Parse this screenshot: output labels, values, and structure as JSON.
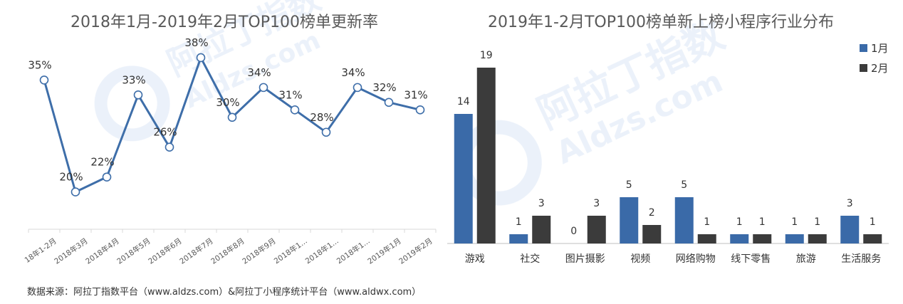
{
  "watermark": {
    "text_cn": "阿拉丁指数",
    "text_en": "Aldzs.com",
    "color": "#dbe6f6"
  },
  "source_note": "数据来源：阿拉丁指数平台（www.aldzs.com）&阿拉丁小程序统计平台（www.aldwx.com）",
  "chart_data": [
    {
      "type": "line",
      "title": "2018年1月-2019年2月TOP100榜单更新率",
      "categories": [
        "18年1-2月",
        "2018年3月",
        "2018年4月",
        "2018年5月",
        "2018年6月",
        "2018年7月",
        "2018年8月",
        "2018年9月",
        "2018年1...",
        "2018年1...",
        "2018年1...",
        "2019年1月",
        "2019年2月"
      ],
      "values": [
        35,
        20,
        22,
        33,
        26,
        38,
        30,
        34,
        31,
        28,
        34,
        32,
        31
      ],
      "labels": [
        "35%",
        "20%",
        "22%",
        "33%",
        "26%",
        "38%",
        "30%",
        "34%",
        "31%",
        "28%",
        "34%",
        "32%",
        "31%"
      ],
      "ylim": [
        15,
        40
      ],
      "color": "#3e6ea9",
      "grid": false
    },
    {
      "type": "bar",
      "title": "2019年1-2月TOP100榜单新上榜小程序行业分布",
      "categories": [
        "游戏",
        "社交",
        "图片摄影",
        "视频",
        "网络购物",
        "线下零售",
        "旅游",
        "生活服务"
      ],
      "series": [
        {
          "name": "1月",
          "values": [
            14,
            1,
            0,
            5,
            5,
            1,
            1,
            3
          ],
          "color": "#3a6aa8"
        },
        {
          "name": "2月",
          "values": [
            19,
            3,
            3,
            2,
            1,
            1,
            1,
            1
          ],
          "color": "#3b3b3b"
        }
      ],
      "ylim": [
        0,
        20
      ],
      "legend": "top-right",
      "grid": false
    }
  ]
}
